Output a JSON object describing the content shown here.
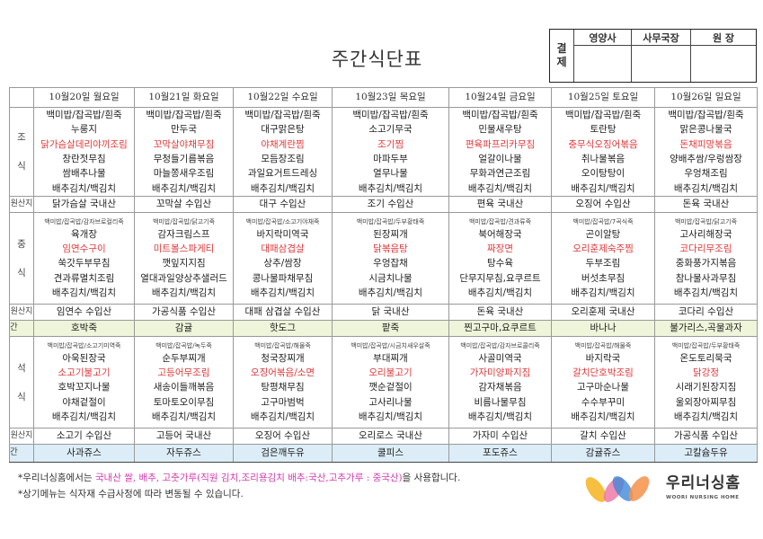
{
  "title": "주간식단표",
  "approval": {
    "label_top": "결",
    "label_bottom": "제",
    "columns": [
      "영양사",
      "사무국장",
      "원  장"
    ]
  },
  "labels": {
    "breakfast": [
      "조",
      "식"
    ],
    "lunch": [
      "중",
      "식"
    ],
    "dinner": [
      "석",
      "식"
    ],
    "origin": "원산지",
    "snack": "간 식"
  },
  "colors": {
    "highlight": "#e0383a",
    "snack_lunch_bg": "#eef5da",
    "snack_dinner_bg": "#dcedf8",
    "footer_pink": "#d43aae"
  },
  "days": [
    {
      "date": "10월20일 월요일",
      "breakfast": [
        "백미밥/잡곡밥/흰죽",
        "누룽지",
        "닭가슴살데리야끼조림",
        "창란젓무침",
        "쌈배추나물",
        "배추김치/백김치"
      ],
      "breakfast_origin": "닭가슴살 국내산",
      "lunch_top": "백미밥/잡곡밥/감자브로컬리죽",
      "lunch": [
        "육개장",
        "임연수구이",
        "쑥갓두부무침",
        "견과류멸치조림",
        "배추김치/백김치"
      ],
      "lunch_origin": "임연수 수입산",
      "snack1": "호박죽",
      "dinner_top": "백미밥/잡곡밥/소고기미역죽",
      "dinner": [
        "아욱된장국",
        "소고기불고기",
        "호박꼬지나물",
        "야채겉절이",
        "배추김치/백김치"
      ],
      "dinner_origin": "소고기 수입산",
      "snack2": "사과쥬스"
    },
    {
      "date": "10월21일 화요일",
      "breakfast": [
        "백미밥/잡곡밥/흰죽",
        "만두국",
        "꼬막살야채무침",
        "무청들기름볶음",
        "마늘쫑새우조림",
        "배추김치/백김치"
      ],
      "breakfast_origin": "꼬막살 수입산",
      "lunch_top": "백미밥/잡곡밥/닭고기죽",
      "lunch": [
        "감자크림스프",
        "미트볼스파게티",
        "깻잎지지짐",
        "열대과일양상추샐러드",
        "배추김치/백김치"
      ],
      "lunch_origin": "가공식품 수입산",
      "snack1": "감귤",
      "dinner_top": "백미밥/잡곡밥/녹두죽",
      "dinner": [
        "순두부찌개",
        "고등어무조림",
        "새송이들깨볶음",
        "토마토오이무침",
        "배추김치/백김치"
      ],
      "dinner_origin": "고등어 국내산",
      "snack2": "자두쥬스"
    },
    {
      "date": "10월22일 수요일",
      "breakfast": [
        "백미밥/잡곡밥/흰죽",
        "대구맑은탕",
        "야채계란찜",
        "모듬장조림",
        "과일요거트드레싱",
        "배추김치/백김치"
      ],
      "breakfast_origin": "대구 수입산",
      "lunch_top": "백미밥/잡곡밥/소고기야채죽",
      "lunch": [
        "바지락미역국",
        "대패삼겹살",
        "상추/쌈장",
        "콩나물파채무침",
        "배추김치/백김치"
      ],
      "lunch_origin": "대패 삼겹살 수입산",
      "snack1": "핫도그",
      "dinner_top": "백미밥/잡곡밥/해물죽",
      "dinner": [
        "청국장찌개",
        "오징어볶음/소면",
        "탕평채무침",
        "고구마범벅",
        "배추김치/백김치"
      ],
      "dinner_origin": "오징어 수입산",
      "snack2": "검은깨두유"
    },
    {
      "date": "10월23일 목요일",
      "breakfast": [
        "백미밥/잡곡밥/흰죽",
        "소고기무국",
        "조기찜",
        "마파두부",
        "열무나물",
        "배추김치/백김치"
      ],
      "breakfast_origin": "조기 수입산",
      "lunch_top": "백미밥/잡곡밥/두부황태죽",
      "lunch": [
        "된장찌개",
        "닭볶음탕",
        "우엉잡채",
        "시금치나물",
        "배추김치/백김치"
      ],
      "lunch_origin": "닭 국내산",
      "snack1": "팥죽",
      "dinner_top": "백미밥/잡곡밥/시금치새우살죽",
      "dinner": [
        "부대찌개",
        "오리불고기",
        "깻순겉절이",
        "고사리나물",
        "배추김치/백김치"
      ],
      "dinner_origin": "오리로스 국내산",
      "snack2": "쿨피스"
    },
    {
      "date": "10월24일 금요일",
      "breakfast": [
        "백미밥/잡곡밥/흰죽",
        "민물새우탕",
        "편육파프리카무침",
        "얼갈이나물",
        "무화과연근조림",
        "배추김치/백김치"
      ],
      "breakfast_origin": "편육 국내산",
      "lunch_top": "백미밥/잡곡밥/견과류죽",
      "lunch": [
        "북어해장국",
        "짜장면",
        "탕수육",
        "단무지무침,요쿠르트",
        "배추김치/백김치"
      ],
      "lunch_origin": "돈육 국내산",
      "snack1": "찐고구마,요쿠르트",
      "dinner_top": "백미밥/잡곡밥/감자브로콜리죽",
      "dinner": [
        "사골미역국",
        "가자미양파지짐",
        "감자채볶음",
        "비름나물무침",
        "배추김치/백김치"
      ],
      "dinner_origin": "가자미 수입산",
      "snack2": "포도쥬스"
    },
    {
      "date": "10월25일 토요일",
      "breakfast": [
        "백미밥/잡곡밥/흰죽",
        "토란탕",
        "충무식오징어볶음",
        "취나물볶음",
        "오이탕탕이",
        "배추김치/백김치"
      ],
      "breakfast_origin": "오징어 수입산",
      "lunch_top": "백미밥/잡곡밥/7곡식죽",
      "lunch": [
        "곤이알탕",
        "오리훈제숙주찜",
        "두부조림",
        "버섯초무침",
        "배추김치/백김치"
      ],
      "lunch_origin": "오리훈제 국내산",
      "snack1": "바나나",
      "dinner_top": "백미밥/잡곡밥/해물죽",
      "dinner": [
        "바지락국",
        "갈치단호박조림",
        "고구마순나물",
        "수수부꾸미",
        "배추김치/백김치"
      ],
      "dinner_origin": "갈치 수입산",
      "snack2": "감귤쥬스"
    },
    {
      "date": "10월26일 일요일",
      "breakfast": [
        "백미밥/잡곡밥/흰죽",
        "맑은콩나물국",
        "돈채피망볶음",
        "양배추쌈/우렁쌈장",
        "우엉채조림",
        "배추김치/백김치"
      ],
      "breakfast_origin": "돈육 국내산",
      "lunch_top": "백미밥/잡곡밥/닭고기죽",
      "lunch": [
        "고사리해장국",
        "코다리무조림",
        "중화풍가지볶음",
        "참나물사과무침",
        "배추김치/백김치"
      ],
      "lunch_origin": "코다리 수입산",
      "snack1": "불가리스,곡물과자",
      "dinner_top": "백미밥/잡곡밥/두부황태죽",
      "dinner": [
        "온도토리묵국",
        "닭강정",
        "시래기된장지짐",
        "울외장아찌무침",
        "배추김치/백김치"
      ],
      "dinner_origin": "가공식품 수입산",
      "snack2": "고칼슘두유"
    }
  ],
  "footer": {
    "line1_pre": "*우리너싱홈에서는 ",
    "line1_highlight": "국내산 쌀, 배추, 고춧가루(직원 김치,조리용김치 배추:국산,고추가루 : 중국산)",
    "line1_post": "을 사용합니다.",
    "line2": "*상기메뉴는 식자재 수급사정에 따라 변동될 수 있습니다."
  },
  "logo": {
    "name": "우리너싱홈",
    "subtitle": "WOORI NURSING HOME"
  }
}
